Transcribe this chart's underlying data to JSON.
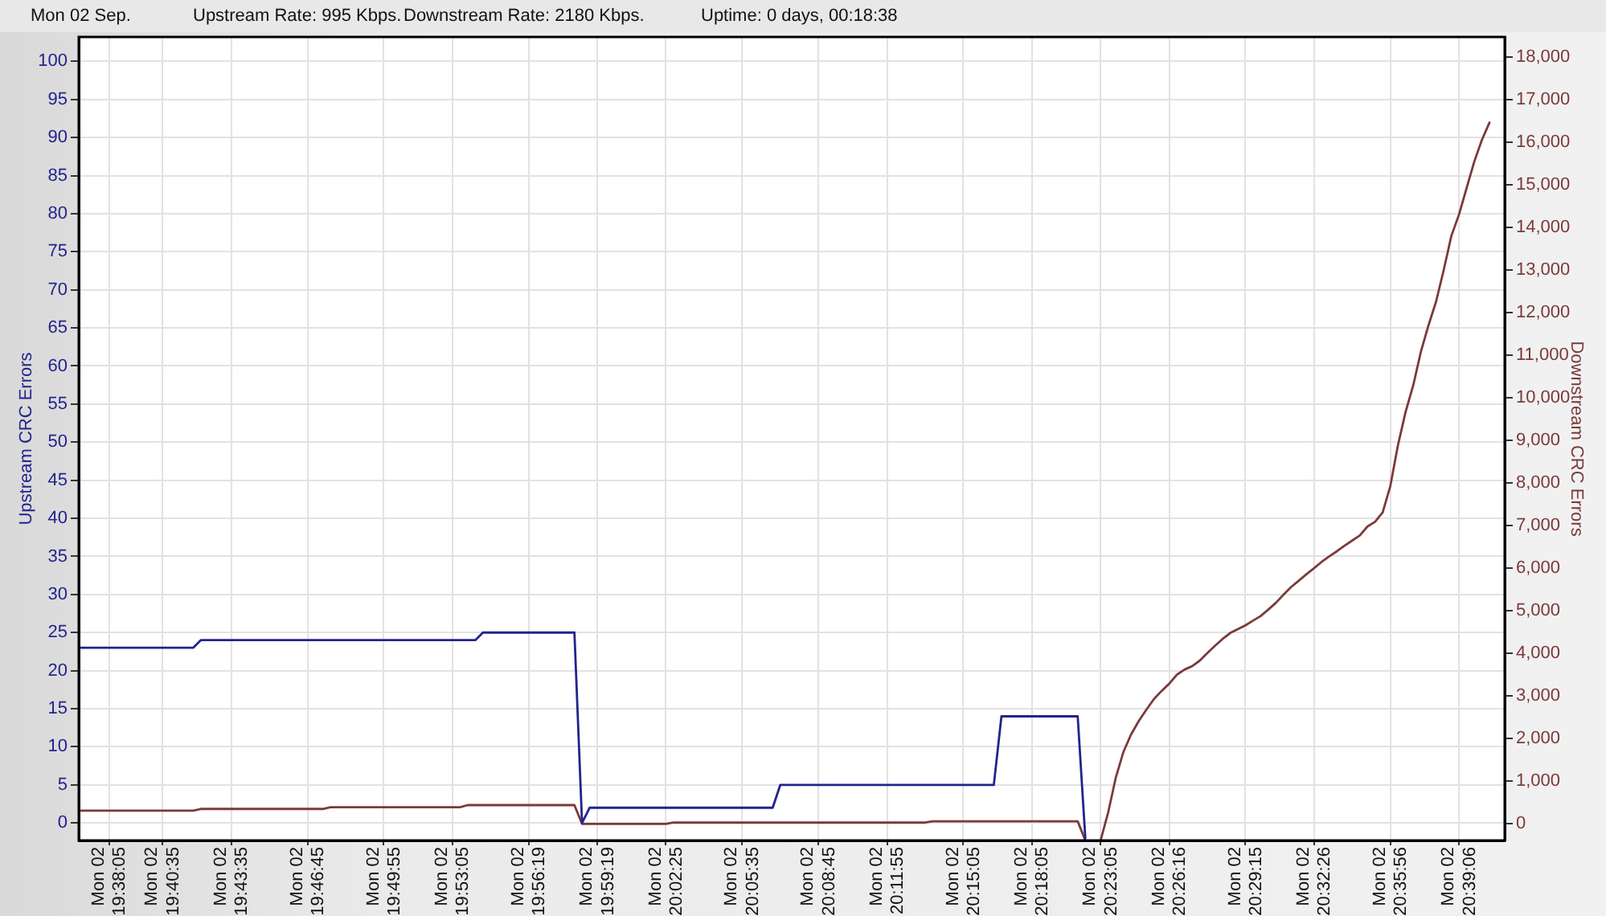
{
  "chart_data": {
    "type": "line",
    "title": "Mon 02 Sep.",
    "annotations": [
      "Upstream Rate: 995 Kbps.",
      "Downstream Rate: 2180 Kbps.",
      "Uptime: 0 days, 00:18:38"
    ],
    "ylabel": "Upstream CRC Errors",
    "y2label": "Downstream CRC Errors",
    "categories": [
      null,
      null,
      null,
      null,
      "Mon 02 19:38:05",
      null,
      null,
      null,
      null,
      null,
      null,
      "Mon 02 19:40:35",
      null,
      null,
      null,
      null,
      null,
      null,
      null,
      null,
      "Mon 02 19:43:35",
      null,
      null,
      null,
      null,
      null,
      null,
      null,
      null,
      null,
      "Mon 02 19:46:45",
      null,
      null,
      null,
      null,
      null,
      null,
      null,
      null,
      null,
      "Mon 02 19:49:55",
      null,
      null,
      null,
      null,
      null,
      null,
      null,
      null,
      "Mon 02 19:53:05",
      null,
      null,
      null,
      null,
      null,
      null,
      null,
      null,
      null,
      "Mon 02 19:56:19",
      null,
      null,
      null,
      null,
      null,
      null,
      null,
      null,
      "Mon 02 19:59:19",
      null,
      null,
      null,
      null,
      null,
      null,
      null,
      null,
      "Mon 02 20:02:25",
      null,
      null,
      null,
      null,
      null,
      null,
      null,
      null,
      null,
      "Mon 02 20:05:35",
      null,
      null,
      null,
      null,
      null,
      null,
      null,
      null,
      null,
      "Mon 02 20:08:45",
      null,
      null,
      null,
      null,
      null,
      null,
      null,
      null,
      "Mon 02 20:11:55",
      null,
      null,
      null,
      null,
      null,
      null,
      null,
      null,
      null,
      "Mon 02 20:15:05",
      null,
      null,
      null,
      null,
      null,
      null,
      null,
      null,
      "Mon 02 20:18:05",
      null,
      null,
      null,
      null,
      null,
      null,
      null,
      null,
      "Mon 02 20:23:05",
      null,
      null,
      null,
      null,
      null,
      null,
      null,
      null,
      "Mon 02 20:26:16",
      null,
      null,
      null,
      null,
      null,
      null,
      null,
      null,
      null,
      "Mon 02 20:29:15",
      null,
      null,
      null,
      null,
      null,
      null,
      null,
      null,
      "Mon 02 20:32:26",
      null,
      null,
      null,
      null,
      null,
      null,
      null,
      null,
      null,
      "Mon 02 20:35:56",
      null,
      null,
      null,
      null,
      null,
      null,
      null,
      null,
      "Mon 02 20:39:06",
      null,
      null,
      null,
      null,
      null,
      null
    ],
    "ylim": [
      -2.3,
      103.2
    ],
    "yticks": [
      0,
      5,
      10,
      15,
      20,
      25,
      30,
      35,
      40,
      45,
      50,
      55,
      60,
      65,
      70,
      75,
      80,
      85,
      90,
      95,
      100
    ],
    "y2lim": [
      -390,
      18470
    ],
    "y2ticks": [
      0,
      {
        "value": 1000,
        "label": "1,000"
      },
      {
        "value": 2000,
        "label": "2,000"
      },
      {
        "value": 3000,
        "label": "3,000"
      },
      {
        "value": 4000,
        "label": "4,000"
      },
      {
        "value": 5000,
        "label": "5,000"
      },
      {
        "value": 6000,
        "label": "6,000"
      },
      {
        "value": 7000,
        "label": "7,000"
      },
      {
        "value": 8000,
        "label": "8,000"
      },
      {
        "value": 9000,
        "label": "9,000"
      },
      {
        "value": 10000,
        "label": "10,000"
      },
      {
        "value": 11000,
        "label": "11,000"
      },
      {
        "value": 12000,
        "label": "12,000"
      },
      {
        "value": 13000,
        "label": "13,000"
      },
      {
        "value": 14000,
        "label": "14,000"
      },
      {
        "value": 15000,
        "label": "15,000"
      },
      {
        "value": 16000,
        "label": "16,000"
      },
      {
        "value": 17000,
        "label": "17,000"
      },
      {
        "value": 18000,
        "label": "18,000"
      }
    ],
    "grid": true,
    "marker": "none",
    "line_style": "solid",
    "series": [
      {
        "color": "#23238e",
        "values": [
          23,
          23,
          23,
          23,
          23,
          23,
          23,
          23,
          23,
          23,
          23,
          23,
          23,
          23,
          23,
          23,
          24,
          24,
          24,
          24,
          24,
          24,
          24,
          24,
          24,
          24,
          24,
          24,
          24,
          24,
          24,
          24,
          24,
          24,
          24,
          24,
          24,
          24,
          24,
          24,
          24,
          24,
          24,
          24,
          24,
          24,
          24,
          24,
          24,
          24,
          24,
          24,
          24,
          25,
          25,
          25,
          25,
          25,
          25,
          25,
          25,
          25,
          25,
          25,
          25,
          25,
          0,
          2,
          2,
          2,
          2,
          2,
          2,
          2,
          2,
          2,
          2,
          2,
          2,
          2,
          2,
          2,
          2,
          2,
          2,
          2,
          2,
          2,
          2,
          2,
          2,
          2,
          5,
          5,
          5,
          5,
          5,
          5,
          5,
          5,
          5,
          5,
          5,
          5,
          5,
          5,
          5,
          5,
          5,
          5,
          5,
          5,
          5,
          5,
          5,
          5,
          5,
          5,
          5,
          5,
          5,
          14,
          14,
          14,
          14,
          14,
          14,
          14,
          14,
          14,
          14,
          14,
          -2,
          null,
          null,
          null,
          null,
          null,
          null,
          null,
          null,
          null,
          null,
          null,
          null,
          null,
          null,
          null,
          null,
          null,
          null,
          null,
          null,
          null,
          null,
          null,
          null,
          null,
          null,
          null,
          null,
          null,
          null,
          null,
          null,
          null,
          null,
          null,
          null,
          null,
          null,
          null,
          null,
          null,
          null,
          null,
          null,
          null,
          null,
          null,
          null,
          null,
          null,
          null,
          null,
          null,
          null,
          null
        ]
      },
      {
        "color": "#7b3a3a",
        "axis": "y2",
        "values": [
          310,
          310,
          310,
          310,
          310,
          310,
          310,
          310,
          310,
          310,
          310,
          310,
          310,
          310,
          310,
          310,
          350,
          350,
          350,
          350,
          350,
          350,
          350,
          350,
          350,
          350,
          350,
          350,
          350,
          350,
          350,
          350,
          350,
          390,
          390,
          390,
          390,
          390,
          390,
          390,
          390,
          390,
          390,
          390,
          390,
          390,
          390,
          390,
          390,
          390,
          390,
          440,
          440,
          440,
          440,
          440,
          440,
          440,
          440,
          440,
          440,
          440,
          440,
          440,
          440,
          440,
          0,
          0,
          0,
          0,
          0,
          0,
          0,
          0,
          0,
          0,
          0,
          0,
          30,
          30,
          30,
          30,
          30,
          30,
          30,
          30,
          30,
          30,
          30,
          30,
          30,
          30,
          30,
          30,
          30,
          30,
          30,
          30,
          30,
          30,
          30,
          30,
          30,
          30,
          30,
          30,
          30,
          30,
          30,
          30,
          30,
          30,
          60,
          60,
          60,
          60,
          60,
          60,
          60,
          60,
          60,
          60,
          60,
          60,
          60,
          60,
          60,
          60,
          60,
          60,
          60,
          60,
          -390,
          null,
          -390,
          270,
          1090,
          1690,
          2100,
          2410,
          2680,
          2930,
          3120,
          3290,
          3500,
          3620,
          3700,
          3830,
          4010,
          4180,
          4340,
          4480,
          4570,
          4660,
          4770,
          4880,
          5030,
          5190,
          5380,
          5560,
          5710,
          5860,
          6000,
          6150,
          6280,
          6400,
          6530,
          6650,
          6770,
          6980,
          7090,
          7310,
          7930,
          8890,
          9670,
          10290,
          11080,
          11700,
          12260,
          13000,
          13800,
          14300,
          14920,
          15540,
          16050,
          16460,
          null,
          null
        ]
      }
    ]
  }
}
